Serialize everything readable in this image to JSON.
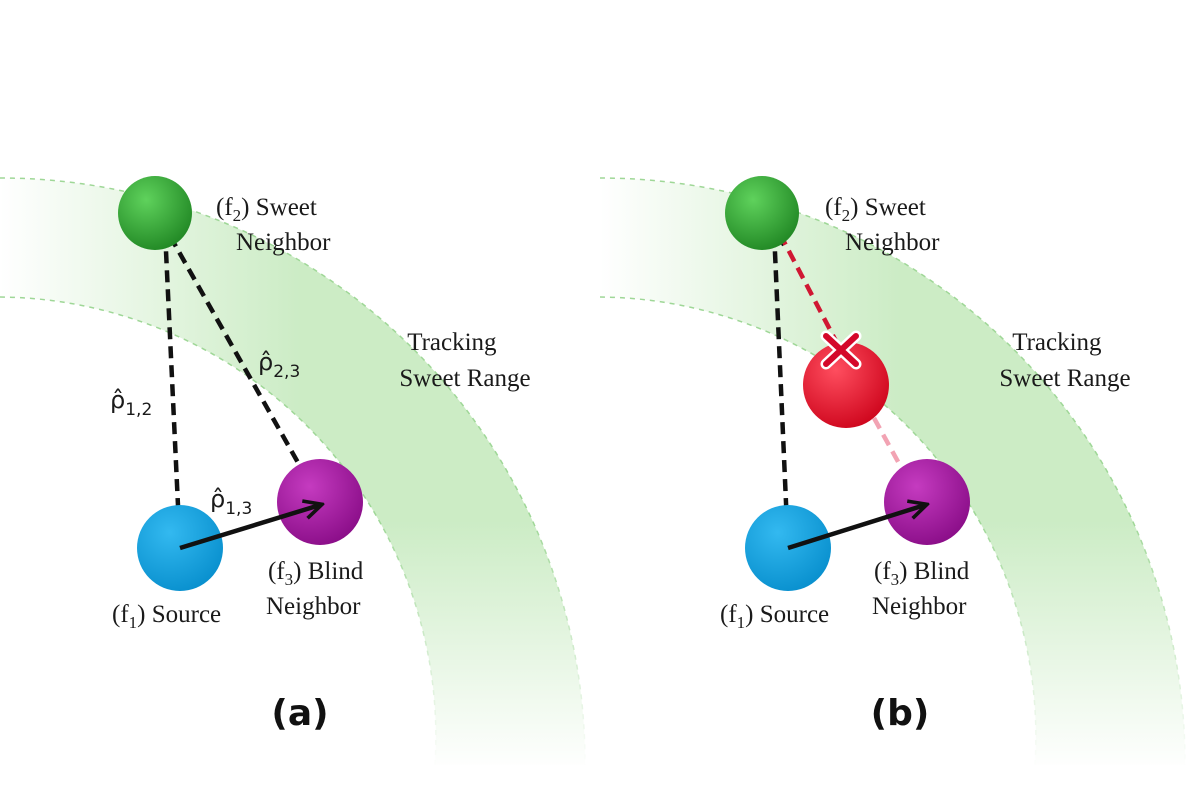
{
  "panels": [
    {
      "caption": "(a)",
      "range_label": [
        "Tracking",
        "Sweet Range"
      ],
      "sweet_label": [
        "(f",
        "2",
        ") Sweet",
        "Neighbor"
      ],
      "source_label": [
        "(f",
        "1",
        ") Source"
      ],
      "blind_label": [
        "(f",
        "3",
        ") Blind",
        "Neighbor"
      ],
      "rho_12": [
        "ρ̂",
        "1,2"
      ],
      "rho_23": [
        "ρ̂",
        "2,3"
      ],
      "rho_13": [
        "ρ̂",
        "1,3"
      ]
    },
    {
      "caption": "(b)",
      "range_label": [
        "Tracking",
        "Sweet Range"
      ],
      "sweet_label": [
        "(f",
        "2",
        ") Sweet",
        "Neighbor"
      ],
      "source_label": [
        "(f",
        "1",
        ") Source"
      ],
      "blind_label": [
        "(f",
        "3",
        ") Blind",
        "Neighbor"
      ]
    }
  ],
  "colors": {
    "band": "#c9ebc2",
    "sweet": "#2f9e32",
    "source": "#0aa3e2",
    "blind": "#a3169f",
    "occluder": "#e3102a",
    "arrow": "#111111",
    "blocked_arrow": "#d01733",
    "faded_arrow": "#f2a3b3"
  },
  "icons": {
    "block_mark": "x-cross-icon"
  }
}
